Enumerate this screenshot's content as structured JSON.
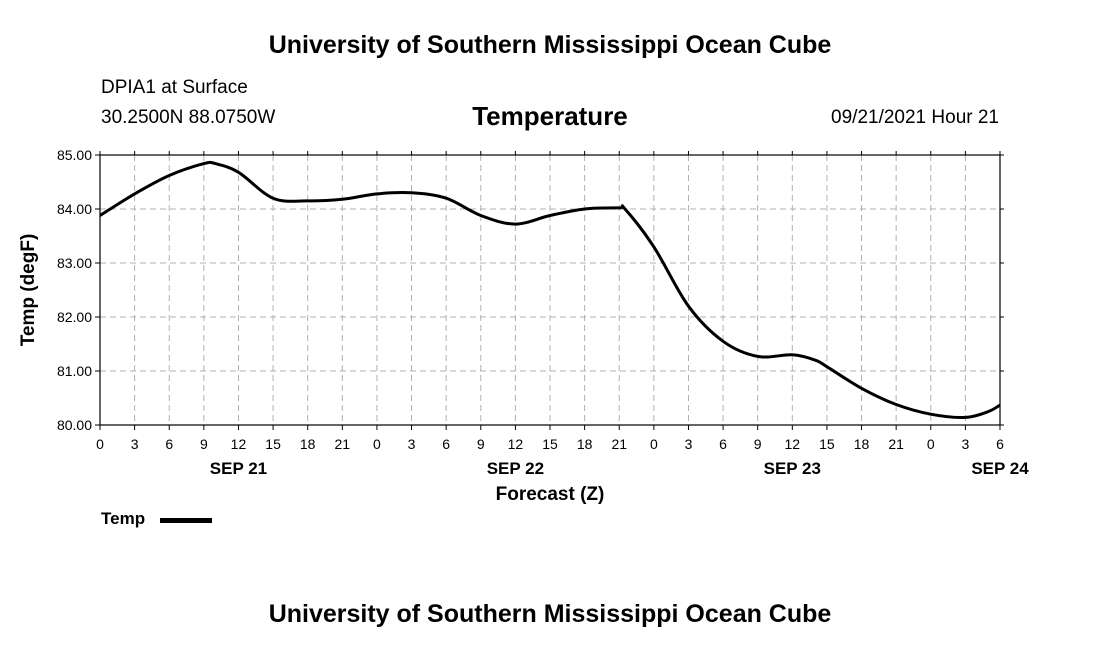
{
  "header": {
    "title": "University of Southern Mississippi Ocean Cube",
    "station": "DPIA1 at Surface",
    "coords": "30.2500N  88.0750W",
    "variable": "Temperature",
    "datetime": "09/21/2021 Hour 21"
  },
  "footer": {
    "title": "University of Southern Mississippi Ocean Cube"
  },
  "legend": {
    "label": "Temp"
  },
  "colors": {
    "line": "#000000",
    "grid": "#b0b0b0",
    "axis": "#000000"
  },
  "chart_data": {
    "type": "line",
    "title": "Temperature",
    "xlabel": "Forecast (Z)",
    "ylabel": "Temp (degF)",
    "ylim": [
      80.0,
      85.0
    ],
    "xlim": [
      0,
      78
    ],
    "x_unit": "hours since SEP 21 00Z",
    "y_ticks": [
      "80.00",
      "81.00",
      "82.00",
      "83.00",
      "84.00",
      "85.00"
    ],
    "x_ticks": [
      "0",
      "3",
      "6",
      "9",
      "12",
      "15",
      "18",
      "21",
      "0",
      "3",
      "6",
      "9",
      "12",
      "15",
      "18",
      "21",
      "0",
      "3",
      "6",
      "9",
      "12",
      "15",
      "18",
      "21",
      "0",
      "3",
      "6"
    ],
    "date_labels": [
      {
        "hour": 12,
        "label": "SEP 21"
      },
      {
        "hour": 36,
        "label": "SEP 22"
      },
      {
        "hour": 60,
        "label": "SEP 23"
      },
      {
        "hour": 78,
        "label": "SEP 24"
      }
    ],
    "grid": true,
    "series": [
      {
        "name": "Temp",
        "x": [
          0,
          3,
          6,
          9,
          10,
          12,
          15,
          18,
          21,
          24,
          27,
          30,
          33,
          36,
          39,
          42,
          45,
          45.5,
          48,
          51,
          54,
          57,
          60,
          62,
          63,
          66,
          69,
          72,
          75,
          77,
          78
        ],
        "values": [
          83.88,
          84.28,
          84.62,
          84.84,
          84.84,
          84.68,
          84.2,
          84.15,
          84.18,
          84.28,
          84.3,
          84.2,
          83.88,
          83.72,
          83.88,
          84.0,
          84.02,
          84.0,
          83.3,
          82.2,
          81.55,
          81.27,
          81.3,
          81.2,
          81.08,
          80.68,
          80.38,
          80.2,
          80.14,
          80.25,
          80.37
        ]
      }
    ]
  }
}
